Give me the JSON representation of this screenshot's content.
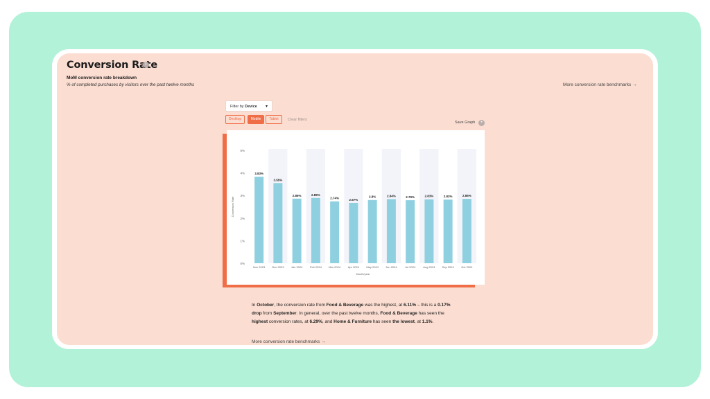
{
  "header": {
    "title": "Conversion Rate",
    "info_icon": "i",
    "subtitle": "MoM conversion rate breakdown",
    "description": "% of completed purchases by visitors over the past twelve months",
    "benchmarks_link": "More conversion rate benchmarks →"
  },
  "filter": {
    "prefix": "Filter by",
    "value": "Device",
    "caret": "▾"
  },
  "device_chips": [
    {
      "label": "Desktop",
      "active": false
    },
    {
      "label": "Mobile",
      "active": true
    },
    {
      "label": "Tablet",
      "active": false
    }
  ],
  "clear_filters": "Clear filters",
  "save_graph": "Save Graph",
  "save_icon": "+",
  "colors": {
    "accent": "#ef6e48",
    "bar": "#8fd0e0",
    "card_bg": "#fbddd1",
    "outer_bg": "#b2f2d8",
    "band": "#f3f4fa"
  },
  "chart_data": {
    "type": "bar",
    "xlabel": "Month/year",
    "ylabel": "Conversion Rate",
    "ylim": [
      0,
      5
    ],
    "y_ticks": [
      "0%",
      "1%",
      "2%",
      "3%",
      "4%",
      "5%"
    ],
    "categories": [
      "Nov 2023",
      "Dec 2023",
      "Jan 2024",
      "Feb 2024",
      "Mar 2024",
      "Apr 2024",
      "May 2024",
      "Jun 2024",
      "Jul 2024",
      "Aug 2024",
      "Sep 2024",
      "Oct 2024"
    ],
    "values": [
      3.83,
      3.55,
      2.86,
      2.89,
      2.74,
      2.67,
      2.8,
      2.84,
      2.79,
      2.83,
      2.82,
      2.85
    ],
    "labels": [
      "3.83%",
      "3.55%",
      "2.86%",
      "2.89%",
      "2.74%",
      "2.67%",
      "2.8%",
      "2.84%",
      "2.79%",
      "2.83%",
      "2.82%",
      "2.85%"
    ],
    "grid": false
  },
  "summary": {
    "p1": "In ",
    "b1": "October",
    "p2": ", the conversion rate from ",
    "b2": "Food & Beverage",
    "p3": " was the highest, at ",
    "b3": "6.11%",
    "p4": " – this is a ",
    "b4": "0.17% drop",
    "p5": " from ",
    "b5": "September",
    "p6": ". In general, over the past twelve months, ",
    "b6": "Food & Beverage",
    "p7": " has seen the ",
    "b7": "highest",
    "p8": " conversion rates, at ",
    "b8": "6.29%",
    "p9": ", and ",
    "b9": "Home & Furniture",
    "p10": " has seen ",
    "b10": "the lowest",
    "p11": ", at ",
    "b11": "1.1%",
    "p12": "."
  },
  "footer_link": "More conversion rate benchmarks →"
}
